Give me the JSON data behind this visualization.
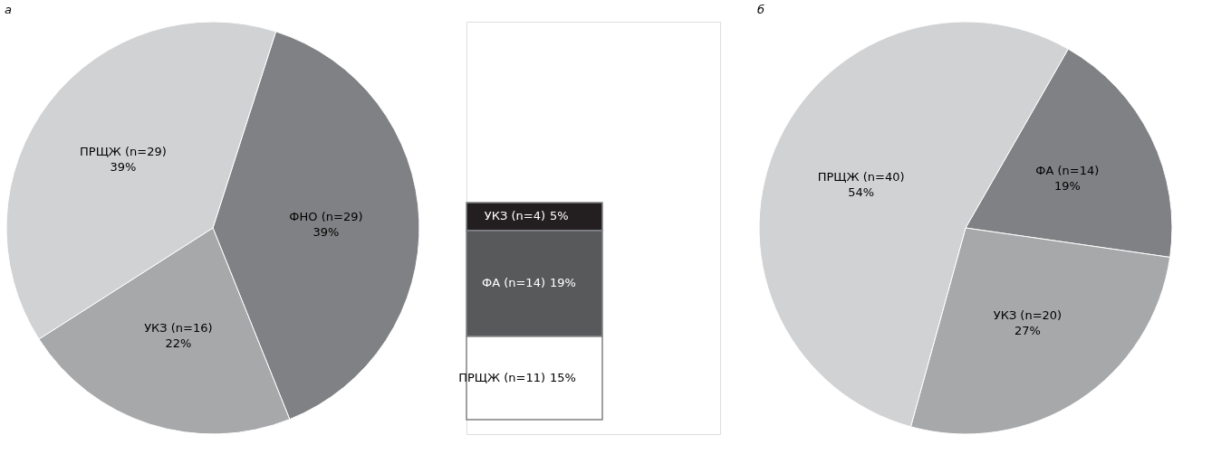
{
  "chart_data": [
    {
      "type": "pie",
      "title": "а",
      "categories": [
        "ФНО (n=29)",
        "УКЗ (n=16)",
        "ПРЩЖ (n=29)"
      ],
      "values": [
        39,
        22,
        39
      ],
      "colors": [
        "#808184",
        "#a7a8aa",
        "#d1d2d4"
      ],
      "value_labels": [
        "39%",
        "22%",
        "39%"
      ]
    },
    {
      "type": "bar",
      "stacked": true,
      "categories": [
        null
      ],
      "series": [
        {
          "name": "ПРЩЖ (n=11)",
          "color": "#ffffff",
          "values": [
            15
          ],
          "value_labels": [
            "15%"
          ]
        },
        {
          "name": "ФА (n=14)",
          "color": "#58595b",
          "values": [
            19
          ],
          "value_labels": [
            "19%"
          ]
        },
        {
          "name": "УКЗ (n=4)",
          "color": "#231f20",
          "values": [
            5
          ],
          "value_labels": [
            "5%"
          ]
        }
      ]
    },
    {
      "type": "pie",
      "title": "б",
      "categories": [
        "ФА (n=14)",
        "УКЗ (n=20)",
        "ПРЩЖ (n=40)"
      ],
      "values": [
        19,
        27,
        54
      ],
      "colors": [
        "#808184",
        "#a7a8aa",
        "#d1d2d4"
      ],
      "value_labels": [
        "19%",
        "27%",
        "54%"
      ]
    }
  ]
}
